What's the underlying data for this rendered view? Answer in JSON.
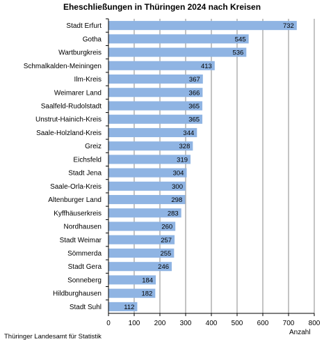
{
  "chart_data": {
    "type": "bar",
    "orientation": "horizontal",
    "title": "Eheschließungen in Thüringen 2024 nach Kreisen",
    "xlabel": "Anzahl",
    "ylabel": "",
    "xlim": [
      0,
      800
    ],
    "xticks": [
      0,
      100,
      200,
      300,
      400,
      500,
      600,
      700,
      800
    ],
    "grid": "vertical",
    "data_labels": "inside-end",
    "bar_color": "#8fb4e3",
    "categories": [
      "Stadt Erfurt",
      "Gotha",
      "Wartburgkreis",
      "Schmalkalden-Meiningen",
      "Ilm-Kreis",
      "Weimarer Land",
      "Saalfeld-Rudolstadt",
      "Unstrut-Hainich-Kreis",
      "Saale-Holzland-Kreis",
      "Greiz",
      "Eichsfeld",
      "Stadt Jena",
      "Saale-Orla-Kreis",
      "Altenburger Land",
      "Kyffhäuserkreis",
      "Nordhausen",
      "Stadt Weimar",
      "Sömmerda",
      "Stadt Gera",
      "Sonneberg",
      "Hildburghausen",
      "Stadt Suhl"
    ],
    "values": [
      732,
      545,
      536,
      413,
      367,
      366,
      365,
      365,
      344,
      328,
      319,
      304,
      300,
      298,
      283,
      260,
      257,
      255,
      246,
      184,
      182,
      112
    ]
  },
  "footer": "Thüringer Landesamt für Statistik"
}
